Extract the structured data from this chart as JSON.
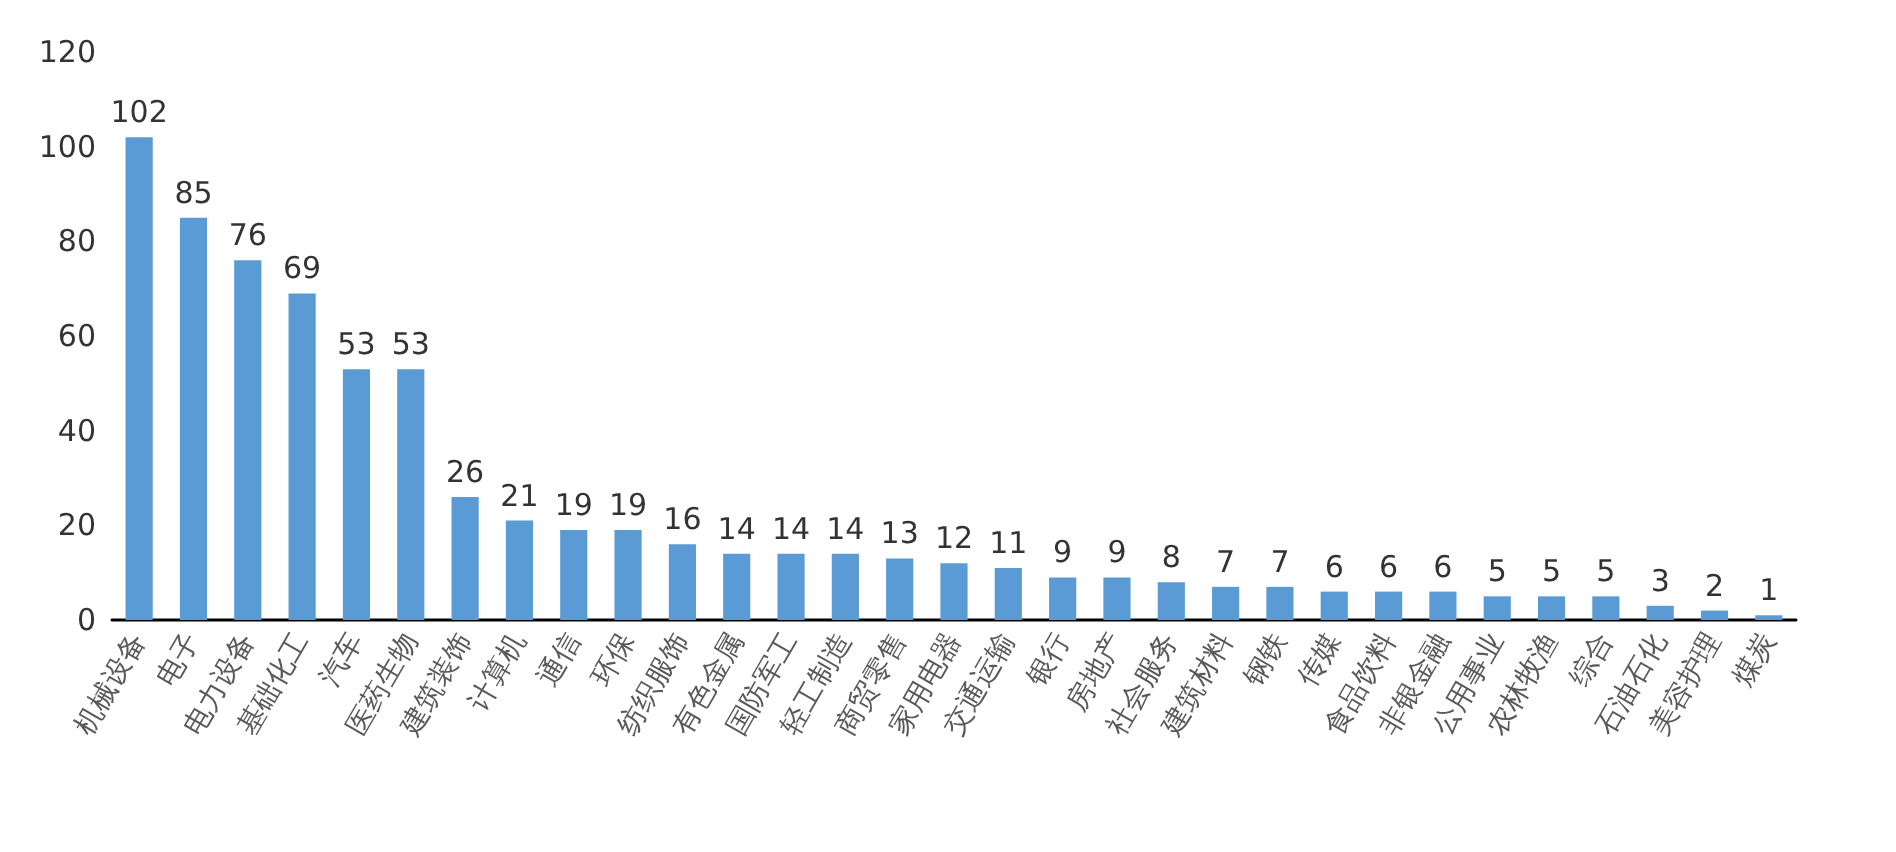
{
  "chart_data": {
    "type": "bar",
    "categories": [
      "机械设备",
      "电子",
      "电力设备",
      "基础化工",
      "汽车",
      "医药生物",
      "建筑装饰",
      "计算机",
      "通信",
      "环保",
      "纺织服饰",
      "有色金属",
      "国防军工",
      "轻工制造",
      "商贸零售",
      "家用电器",
      "交通运输",
      "银行",
      "房地产",
      "社会服务",
      "建筑材料",
      "钢铁",
      "传媒",
      "食品饮料",
      "非银金融",
      "公用事业",
      "农林牧渔",
      "综合",
      "石油石化",
      "美容护理",
      "煤炭"
    ],
    "values": [
      102,
      85,
      76,
      69,
      53,
      53,
      26,
      21,
      19,
      19,
      16,
      14,
      14,
      14,
      13,
      12,
      11,
      9,
      9,
      8,
      7,
      7,
      6,
      6,
      6,
      5,
      5,
      5,
      3,
      2,
      1
    ],
    "color": "#5b9bd5",
    "ylim": [
      0,
      120
    ],
    "yticks": [
      0,
      20,
      40,
      60,
      80,
      100,
      120
    ],
    "grid": false,
    "data_labels": true
  }
}
